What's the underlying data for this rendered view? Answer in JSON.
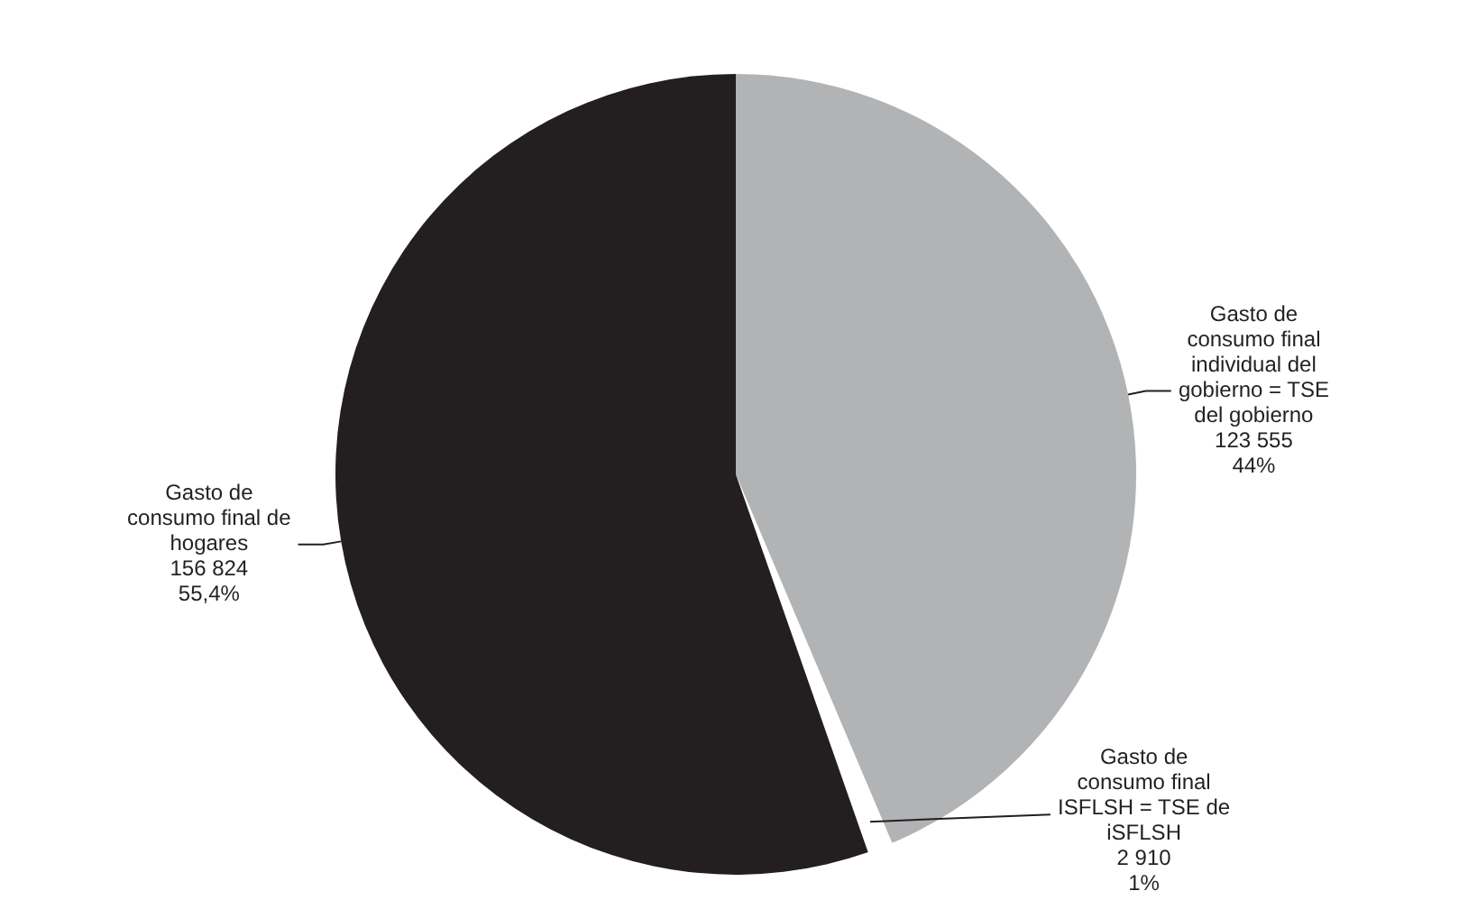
{
  "chart_data": {
    "type": "pie",
    "categories": [
      "Gasto de consumo final individual del gobierno = TSE del gobierno",
      "Gasto de consumo final ISFLSH = TSE de iSFLSH",
      "Gasto de consumo final de hogares"
    ],
    "values": [
      123555,
      2910,
      156824
    ],
    "colors": [
      "#b2b3b5",
      "#ffffff",
      "#231f20"
    ],
    "value_labels": [
      "123 555\n44%",
      "2 910\n1%",
      "156 824\n55,4%"
    ],
    "legend": false
  }
}
